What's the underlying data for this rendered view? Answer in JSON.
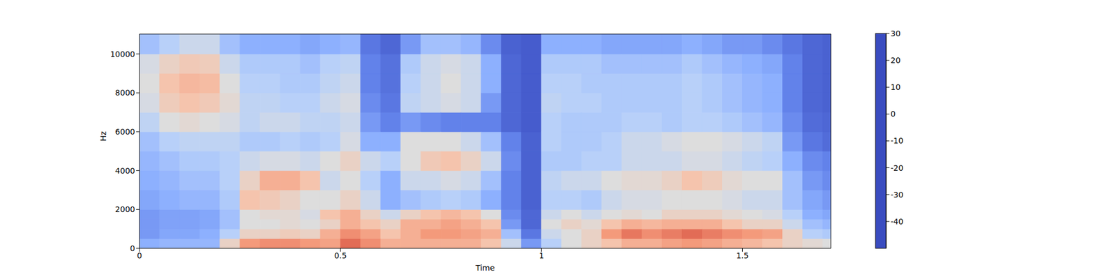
{
  "chart_data": {
    "type": "heatmap",
    "xlabel": "Time",
    "ylabel": "Hz",
    "xlim": [
      0,
      1.72
    ],
    "ylim": [
      0,
      11025
    ],
    "xticks": [
      0,
      0.5,
      1,
      1.5
    ],
    "yticks": [
      0,
      2000,
      4000,
      6000,
      8000,
      10000
    ],
    "x_edges": [
      0,
      0.05,
      0.1,
      0.15,
      0.2,
      0.25,
      0.3,
      0.35,
      0.4,
      0.45,
      0.5,
      0.55,
      0.6,
      0.65,
      0.7,
      0.75,
      0.8,
      0.85,
      0.9,
      0.95,
      1,
      1.05,
      1.1,
      1.15,
      1.2,
      1.25,
      1.3,
      1.35,
      1.4,
      1.45,
      1.5,
      1.55,
      1.6,
      1.65,
      1.7,
      1.72
    ],
    "y_edges": [
      0,
      500,
      1000,
      1500,
      2000,
      3000,
      4000,
      5000,
      6000,
      7000,
      8000,
      9000,
      10000,
      11025
    ],
    "cells": [
      [
        -30,
        -35,
        -35,
        -35,
        -32,
        -30,
        -28,
        -25,
        -18,
        -12,
        -10,
        -12,
        -25
      ],
      [
        -28,
        -32,
        -33,
        -33,
        -30,
        -28,
        -25,
        -20,
        -10,
        -3,
        0,
        -5,
        -20
      ],
      [
        -28,
        -32,
        -33,
        -33,
        -28,
        -25,
        -22,
        -18,
        -8,
        0,
        3,
        -2,
        -15
      ],
      [
        -28,
        -30,
        -32,
        -32,
        -28,
        -25,
        -22,
        -18,
        -10,
        -2,
        2,
        -3,
        -15
      ],
      [
        -5,
        -20,
        -25,
        -25,
        -22,
        -20,
        -20,
        -18,
        -12,
        -8,
        -10,
        -15,
        -25
      ],
      [
        10,
        -5,
        -10,
        -10,
        0,
        -5,
        -15,
        -22,
        -18,
        -18,
        -20,
        -22,
        -30
      ],
      [
        12,
        -5,
        -10,
        -8,
        -2,
        5,
        -12,
        -22,
        -15,
        -18,
        -20,
        -22,
        -30
      ],
      [
        12,
        -3,
        -8,
        -8,
        -5,
        5,
        -12,
        -20,
        -15,
        -20,
        -22,
        -22,
        -30
      ],
      [
        10,
        -5,
        -10,
        -12,
        -10,
        0,
        -15,
        -22,
        -18,
        -20,
        -22,
        -25,
        -32
      ],
      [
        8,
        5,
        -5,
        0,
        -10,
        -15,
        -10,
        -20,
        -18,
        -15,
        -18,
        -20,
        -30
      ],
      [
        18,
        12,
        5,
        5,
        -5,
        -10,
        -5,
        -12,
        -15,
        -12,
        -15,
        -18,
        -28
      ],
      [
        12,
        8,
        0,
        -5,
        -15,
        -20,
        -15,
        -30,
        -35,
        -38,
        -40,
        -40,
        -42
      ],
      [
        5,
        0,
        -5,
        -15,
        -30,
        -30,
        -20,
        -30,
        -40,
        -42,
        -43,
        -43,
        -45
      ],
      [
        5,
        5,
        5,
        -5,
        -25,
        -15,
        -10,
        -10,
        -35,
        -18,
        -20,
        -22,
        -35
      ],
      [
        5,
        10,
        5,
        0,
        -22,
        -15,
        -2,
        -10,
        -38,
        -15,
        -15,
        -15,
        -25
      ],
      [
        5,
        10,
        8,
        3,
        -20,
        -12,
        0,
        -10,
        -40,
        -12,
        -10,
        -12,
        -25
      ],
      [
        5,
        8,
        5,
        0,
        -22,
        -15,
        -5,
        -15,
        -40,
        -15,
        -15,
        -15,
        -28
      ],
      [
        0,
        5,
        0,
        -10,
        -30,
        -25,
        -15,
        -25,
        -40,
        -35,
        -30,
        -30,
        -38
      ],
      [
        -15,
        -25,
        -35,
        -38,
        -40,
        -40,
        -38,
        -40,
        -45,
        -45,
        -45,
        -45,
        -46
      ],
      [
        -35,
        -42,
        -45,
        -45,
        -46,
        -46,
        -46,
        -46,
        -47,
        -47,
        -47,
        -47,
        -47
      ],
      [
        -20,
        -15,
        -10,
        -15,
        -20,
        -18,
        -22,
        -20,
        -20,
        -18,
        -20,
        -22,
        -30
      ],
      [
        -10,
        -10,
        -5,
        -10,
        -20,
        -15,
        -22,
        -22,
        -22,
        -20,
        -20,
        -22,
        -30
      ],
      [
        -5,
        -5,
        -8,
        -15,
        -22,
        -15,
        -20,
        -22,
        -22,
        -20,
        -22,
        -22,
        -30
      ],
      [
        0,
        10,
        0,
        -10,
        -15,
        -10,
        -20,
        -20,
        -22,
        -22,
        -22,
        -25,
        -32
      ],
      [
        5,
        16,
        5,
        -8,
        -12,
        -8,
        -15,
        -15,
        -20,
        -22,
        -22,
        -25,
        -32
      ],
      [
        5,
        12,
        3,
        -10,
        -12,
        -8,
        -15,
        -15,
        -20,
        -22,
        -22,
        -25,
        -32
      ],
      [
        8,
        15,
        5,
        -5,
        -10,
        -5,
        -15,
        -12,
        -22,
        -22,
        -22,
        -25,
        -32
      ],
      [
        10,
        18,
        5,
        -5,
        -10,
        0,
        -12,
        -10,
        -20,
        -20,
        -20,
        -22,
        -30
      ],
      [
        8,
        15,
        5,
        -5,
        -10,
        -3,
        -12,
        -10,
        -20,
        -22,
        -22,
        -25,
        -32
      ],
      [
        5,
        12,
        0,
        -8,
        -12,
        -8,
        -15,
        -12,
        -22,
        -25,
        -25,
        -28,
        -35
      ],
      [
        3,
        10,
        -5,
        -10,
        -15,
        -10,
        -18,
        -15,
        -25,
        -28,
        -28,
        -30,
        -35
      ],
      [
        0,
        8,
        -5,
        -12,
        -15,
        -10,
        -20,
        -18,
        -28,
        -30,
        -30,
        -32,
        -38
      ],
      [
        -5,
        -5,
        -15,
        -20,
        -25,
        -25,
        -30,
        -35,
        -38,
        -40,
        -40,
        -40,
        -42
      ],
      [
        -8,
        -20,
        -25,
        -30,
        -32,
        -35,
        -38,
        -42,
        -44,
        -45,
        -45,
        -45,
        -45
      ],
      [
        -10,
        -22,
        -28,
        -32,
        -35,
        -38,
        -40,
        -44,
        -45,
        -46,
        -46,
        -46,
        -46
      ]
    ],
    "colorbar": {
      "range": [
        -50,
        30
      ],
      "ticks": [
        -40,
        -30,
        -20,
        -10,
        0,
        10,
        20,
        30
      ]
    }
  }
}
